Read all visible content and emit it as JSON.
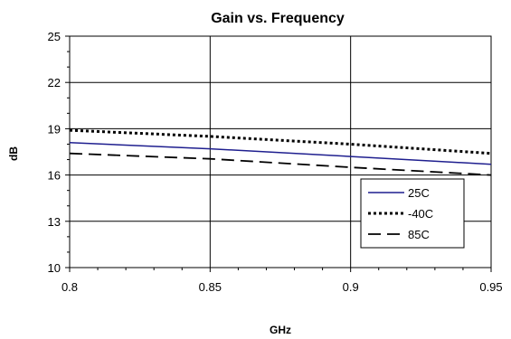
{
  "chart_data": {
    "type": "line",
    "title": "Gain vs. Frequency",
    "xlabel": "GHz",
    "ylabel": "dB",
    "xlim": [
      0.8,
      0.95
    ],
    "ylim": [
      10,
      25
    ],
    "x_ticks": [
      0.8,
      0.85,
      0.9,
      0.95
    ],
    "x_tick_labels": [
      "0.8",
      "0.85",
      "0.9",
      "0.95"
    ],
    "y_ticks": [
      10,
      13,
      16,
      19,
      22,
      25
    ],
    "y_tick_labels": [
      "10",
      "13",
      "16",
      "19",
      "22",
      "25"
    ],
    "grid": "major-vertical-and-horizontal",
    "legend_position": "lower-right",
    "series": [
      {
        "name": "25C",
        "color": "#1f1f8f",
        "dash": "solid",
        "x": [
          0.8,
          0.85,
          0.9,
          0.95
        ],
        "y": [
          18.1,
          17.7,
          17.2,
          16.7
        ]
      },
      {
        "name": "-40C",
        "color": "#000000",
        "dash": "dotted",
        "x": [
          0.8,
          0.85,
          0.9,
          0.95
        ],
        "y": [
          18.9,
          18.5,
          18.0,
          17.4
        ]
      },
      {
        "name": "85C",
        "color": "#000000",
        "dash": "dashed",
        "x": [
          0.8,
          0.85,
          0.9,
          0.95
        ],
        "y": [
          17.4,
          17.05,
          16.5,
          16.0
        ]
      }
    ]
  }
}
